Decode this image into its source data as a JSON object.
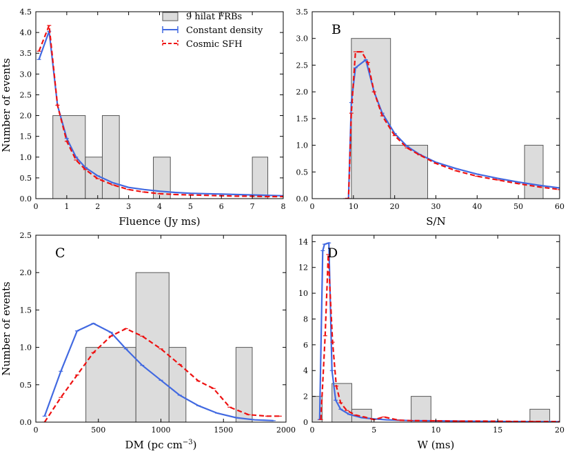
{
  "chart_data": [
    {
      "type": "bar",
      "panel_label": "",
      "xlabel": "Fluence (Jy ms)",
      "ylabel": "Number of events",
      "xlim": [
        0,
        8
      ],
      "ylim": [
        0,
        4.5
      ],
      "xticks": [
        "0",
        "1",
        "2",
        "3",
        "4",
        "5",
        "6",
        "7",
        "8"
      ],
      "yticks": [
        "0.0",
        "0.5",
        "1.0",
        "1.5",
        "2.0",
        "2.5",
        "3.0",
        "3.5",
        "4.0",
        "4.5"
      ],
      "legend_position": "top-right",
      "legend": [
        "9 hilat FRBs",
        "Constant density",
        "Cosmic SFH"
      ],
      "histogram": {
        "name": "9 hilat FRBs",
        "bins": [
          [
            0.55,
            1.6,
            2
          ],
          [
            1.6,
            2.15,
            1
          ],
          [
            2.15,
            2.7,
            2
          ],
          [
            3.8,
            4.35,
            1
          ],
          [
            7.0,
            7.5,
            1
          ]
        ]
      },
      "series": [
        {
          "name": "Constant density",
          "x": [
            0.1,
            0.43,
            0.7,
            1.0,
            1.3,
            1.6,
            2.0,
            2.5,
            3.0,
            3.5,
            4.0,
            4.5,
            5.0,
            5.5,
            6.0,
            6.5,
            7.0,
            7.5,
            8.0
          ],
          "y": [
            3.35,
            4.03,
            2.25,
            1.45,
            1.0,
            0.75,
            0.55,
            0.38,
            0.27,
            0.22,
            0.18,
            0.15,
            0.13,
            0.12,
            0.11,
            0.1,
            0.09,
            0.08,
            0.07
          ]
        },
        {
          "name": "Cosmic SFH",
          "x": [
            0.1,
            0.43,
            0.7,
            1.0,
            1.3,
            1.6,
            2.0,
            2.5,
            3.0,
            3.5,
            4.0,
            4.5,
            5.0,
            5.5,
            6.0,
            6.5,
            7.0,
            7.5,
            8.0
          ],
          "y": [
            3.55,
            4.17,
            2.25,
            1.38,
            0.93,
            0.7,
            0.48,
            0.33,
            0.22,
            0.16,
            0.12,
            0.1,
            0.09,
            0.08,
            0.07,
            0.06,
            0.06,
            0.05,
            0.05
          ]
        }
      ]
    },
    {
      "type": "bar",
      "panel_label": "B",
      "xlabel": "S/N",
      "ylabel": "",
      "xlim": [
        0,
        60
      ],
      "ylim": [
        0,
        3.5
      ],
      "xticks": [
        "0",
        "10",
        "20",
        "30",
        "40",
        "50",
        "60"
      ],
      "yticks": [
        "0.0",
        "0.5",
        "1.0",
        "1.5",
        "2.0",
        "2.5",
        "3.0",
        "3.5"
      ],
      "histogram": {
        "name": "9 hilat FRBs",
        "bins": [
          [
            9.5,
            19,
            3
          ],
          [
            19,
            28,
            1
          ],
          [
            51.5,
            56,
            1
          ]
        ]
      },
      "series": [
        {
          "name": "Constant density",
          "x": [
            8.0,
            8.8,
            9.5,
            10.5,
            13,
            15,
            17,
            20,
            23,
            26,
            30,
            35,
            40,
            45,
            50,
            55,
            60
          ],
          "y": [
            0.0,
            0.0,
            1.8,
            2.45,
            2.6,
            2.0,
            1.6,
            1.22,
            0.98,
            0.83,
            0.68,
            0.56,
            0.46,
            0.38,
            0.31,
            0.25,
            0.2
          ]
        },
        {
          "name": "Cosmic SFH",
          "x": [
            8.0,
            8.8,
            9.5,
            10.5,
            12,
            13.5,
            15,
            17,
            20,
            23,
            26,
            30,
            35,
            40,
            45,
            50,
            55,
            60
          ],
          "y": [
            0.0,
            0.0,
            1.6,
            2.75,
            2.75,
            2.55,
            2.0,
            1.55,
            1.18,
            0.95,
            0.82,
            0.66,
            0.52,
            0.42,
            0.35,
            0.28,
            0.22,
            0.17
          ]
        }
      ]
    },
    {
      "type": "bar",
      "panel_label": "C",
      "xlabel": "DM (pc cm",
      "xlabel_sup": "−3",
      "xlabel_end": ")",
      "ylabel": "Number of events",
      "xlim": [
        0,
        2000
      ],
      "ylim": [
        0,
        2.5
      ],
      "xticks": [
        "0",
        "500",
        "1000",
        "1500",
        "2000"
      ],
      "yticks": [
        "0.0",
        "0.5",
        "1.0",
        "1.5",
        "2.0",
        "2.5"
      ],
      "histogram": {
        "name": "9 hilat FRBs",
        "bins": [
          [
            400,
            800,
            1
          ],
          [
            800,
            1065,
            2
          ],
          [
            1065,
            1200,
            1
          ],
          [
            1600,
            1730,
            1
          ]
        ]
      },
      "series": [
        {
          "name": "Constant density",
          "x": [
            70,
            200,
            330,
            460,
            600,
            720,
            850,
            1000,
            1150,
            1300,
            1450,
            1600,
            1750,
            1900
          ],
          "y": [
            0.08,
            0.68,
            1.22,
            1.32,
            1.2,
            0.98,
            0.76,
            0.56,
            0.36,
            0.22,
            0.12,
            0.06,
            0.03,
            0.02
          ]
        },
        {
          "name": "Cosmic SFH",
          "x": [
            70,
            200,
            330,
            460,
            600,
            720,
            850,
            1000,
            1150,
            1300,
            1420,
            1550,
            1700,
            1850,
            1950
          ],
          "y": [
            0.0,
            0.33,
            0.63,
            0.93,
            1.15,
            1.25,
            1.15,
            0.98,
            0.77,
            0.55,
            0.45,
            0.2,
            0.1,
            0.08,
            0.08
          ]
        }
      ]
    },
    {
      "type": "bar",
      "panel_label": "D",
      "xlabel": "W (ms)",
      "ylabel": "",
      "xlim": [
        0,
        20
      ],
      "ylim": [
        0,
        14.5
      ],
      "xticks": [
        "0",
        "5",
        "10",
        "15",
        "20"
      ],
      "yticks": [
        "0",
        "2",
        "4",
        "6",
        "8",
        "10",
        "12",
        "14"
      ],
      "histogram": {
        "name": "9 hilat FRBs",
        "bins": [
          [
            0,
            0.8,
            2
          ],
          [
            1.6,
            3.2,
            3
          ],
          [
            3.2,
            4.8,
            1
          ],
          [
            8.0,
            9.6,
            2
          ],
          [
            17.6,
            19.2,
            1
          ]
        ]
      },
      "series": [
        {
          "name": "Constant density",
          "x": [
            0.6,
            0.85,
            1.0,
            1.35,
            1.6,
            1.9,
            2.3,
            3.0,
            4.0,
            5.0,
            6.0,
            8.0,
            10.0,
            12.0,
            14.0,
            16.0,
            18.0,
            20.0
          ],
          "y": [
            0.2,
            13.3,
            13.8,
            13.9,
            4.0,
            1.7,
            1.0,
            0.6,
            0.35,
            0.25,
            0.18,
            0.12,
            0.1,
            0.08,
            0.06,
            0.05,
            0.04,
            0.03
          ]
        },
        {
          "name": "Cosmic SFH",
          "x": [
            0.7,
            1.05,
            1.3,
            1.65,
            1.95,
            2.3,
            2.8,
            3.5,
            4.2,
            5.0,
            5.8,
            7.0,
            8.0,
            10.0,
            12.0,
            14.0,
            16.0,
            18.0,
            20.0
          ],
          "y": [
            0.2,
            6.7,
            13.0,
            6.2,
            2.8,
            1.5,
            0.9,
            0.55,
            0.4,
            0.2,
            0.4,
            0.15,
            0.12,
            0.1,
            0.08,
            0.08,
            0.06,
            0.05,
            0.04
          ]
        }
      ]
    }
  ]
}
